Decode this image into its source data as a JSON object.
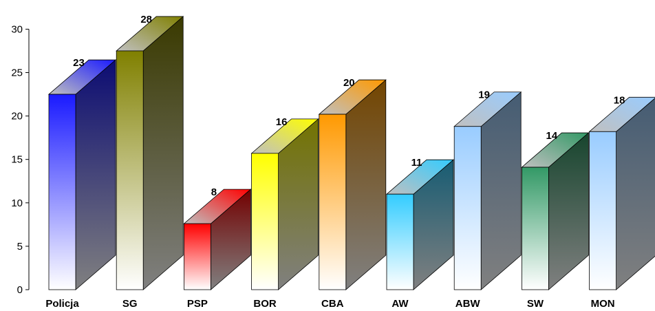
{
  "chart_data": {
    "type": "bar",
    "style": "3d-column",
    "categories": [
      "Policja",
      "SG",
      "PSP",
      "BOR",
      "CBA",
      "AW",
      "ABW",
      "SW",
      "MON"
    ],
    "values": [
      23,
      28,
      8,
      16,
      20,
      11,
      19,
      14,
      18
    ],
    "bar_heights": [
      22.5,
      27.5,
      7.6,
      15.7,
      20.2,
      11.0,
      18.8,
      14.1,
      18.2
    ],
    "colors": [
      "#1a1aff",
      "#808000",
      "#ff0000",
      "#ffff00",
      "#ff9900",
      "#33ccff",
      "#99ccff",
      "#339966",
      "#99ccff"
    ],
    "y_ticks": [
      "0",
      "5",
      "10",
      "15",
      "20",
      "25",
      "30"
    ],
    "ylim": [
      0,
      30
    ],
    "grid": false,
    "legend": "none",
    "title": "",
    "xlabel": "",
    "ylabel": ""
  }
}
